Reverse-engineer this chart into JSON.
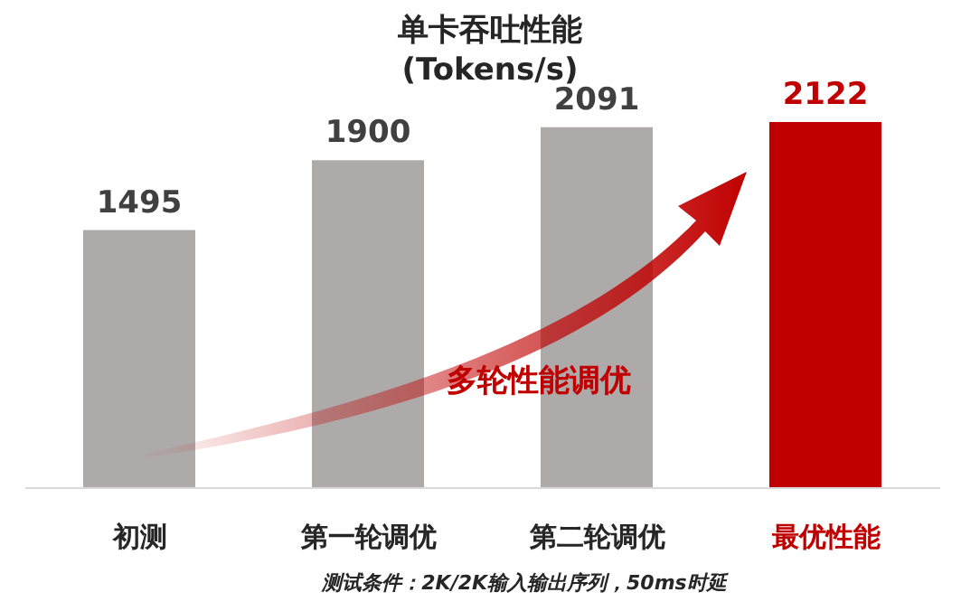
{
  "chart_data": {
    "type": "bar",
    "title": "单卡吞吐性能",
    "subtitle": "(Tokens/s)",
    "categories": [
      "初测",
      "第一轮调优",
      "第二轮调优",
      "最优性能"
    ],
    "values": [
      1495,
      1900,
      2091,
      2122
    ],
    "colors": [
      "#aeaaa9",
      "#aeaaa9",
      "#aeaaa9",
      "#c00000"
    ],
    "data_labels": true,
    "annotations": [
      "多轮性能调优",
      "测试条件：2K/2K输入输出序列，50ms时延"
    ]
  }
}
